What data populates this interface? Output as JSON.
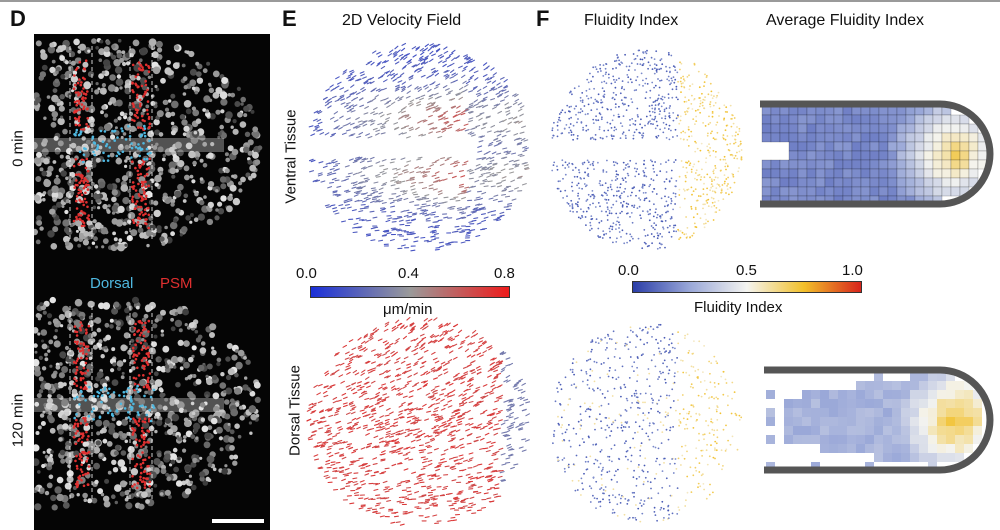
{
  "panels": {
    "d": {
      "letter": "D",
      "time_top": "0 min",
      "time_bottom": "120 min",
      "legend_dorsal": "Dorsal",
      "legend_psm": "PSM",
      "dorsal_color": "#4fb8e0",
      "psm_color": "#e03030"
    },
    "e": {
      "letter": "E",
      "title": "2D Velocity Field",
      "row_top": "Ventral Tissue",
      "row_bottom": "Dorsal Tissue",
      "colorbar": {
        "min": "0.0",
        "mid": "0.4",
        "max": "0.8",
        "unit": "μm/min",
        "low_color": "#1a2fd8",
        "mid_color": "#9a9a9a",
        "high_color": "#ee1c1c"
      }
    },
    "f": {
      "letter": "F",
      "title_left": "Fluidity Index",
      "title_right": "Average Fluidity Index",
      "colorbar": {
        "min": "0.0",
        "mid": "0.5",
        "max": "1.0",
        "label": "Fluidity Index",
        "c0": "#2b3ea8",
        "c1": "#9aa8d8",
        "c2": "#f4f4f0",
        "c3": "#f2c02a",
        "c4": "#d8241c"
      }
    }
  }
}
